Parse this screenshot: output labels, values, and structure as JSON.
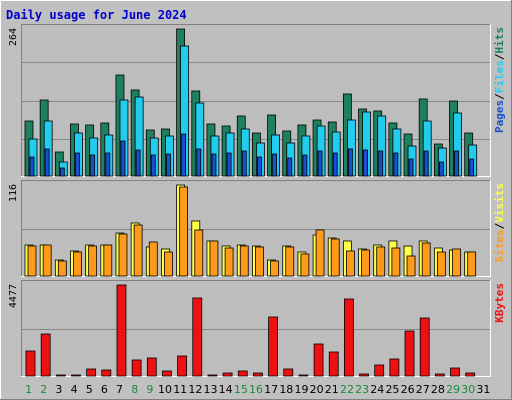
{
  "title": "Daily usage for June 2024",
  "colors": {
    "background": "#c0c0c0",
    "plot_bg": "#bdbdbd",
    "title": "#0000cc",
    "hits": "#1f8060",
    "files": "#22ccee",
    "pages": "#1a4fd0",
    "visits": "#ffff44",
    "sites": "#ff9a1a",
    "kbytes": "#ee1111",
    "weekend_label": "#1a8a3a",
    "weekday_label": "#000000"
  },
  "chart_data": [
    {
      "type": "bar",
      "panel": "hits-files-pages",
      "max_label": "264",
      "ylim": [
        0,
        264
      ],
      "legend": [
        "Pages",
        "Files",
        "Hits"
      ],
      "legend_sep": "/",
      "x": [
        1,
        2,
        3,
        4,
        5,
        6,
        7,
        8,
        9,
        10,
        11,
        12,
        13,
        14,
        15,
        16,
        17,
        18,
        19,
        20,
        21,
        22,
        23,
        24,
        25,
        26,
        27,
        28,
        29,
        30
      ],
      "series": [
        {
          "name": "Hits",
          "values": [
            98,
            137,
            43,
            93,
            91,
            96,
            182,
            155,
            83,
            84,
            264,
            152,
            93,
            89,
            107,
            78,
            109,
            80,
            91,
            100,
            97,
            147,
            121,
            116,
            96,
            75,
            139,
            57,
            135,
            77
          ]
        },
        {
          "name": "Files",
          "values": [
            66,
            98,
            26,
            78,
            68,
            73,
            136,
            141,
            69,
            71,
            234,
            131,
            71,
            78,
            84,
            60,
            73,
            59,
            71,
            90,
            79,
            101,
            115,
            108,
            84,
            53,
            98,
            50,
            114,
            55
          ]
        },
        {
          "name": "Pages",
          "values": [
            35,
            49,
            15,
            42,
            38,
            41,
            62,
            47,
            38,
            39,
            75,
            48,
            40,
            42,
            44,
            34,
            40,
            33,
            38,
            45,
            41,
            48,
            46,
            44,
            41,
            30,
            44,
            26,
            45,
            30
          ]
        }
      ]
    },
    {
      "type": "bar",
      "panel": "visits-sites",
      "max_label": "116",
      "ylim": [
        0,
        116
      ],
      "legend": [
        "Sites",
        "Visits"
      ],
      "legend_sep": "/",
      "x": [
        1,
        2,
        3,
        4,
        5,
        6,
        7,
        8,
        9,
        10,
        11,
        12,
        13,
        14,
        15,
        16,
        17,
        18,
        19,
        20,
        21,
        22,
        23,
        24,
        25,
        26,
        27,
        28,
        29,
        30
      ],
      "series": [
        {
          "name": "Visits",
          "values": [
            40,
            40,
            20,
            32,
            40,
            40,
            55,
            68,
            37,
            35,
            116,
            70,
            45,
            38,
            40,
            38,
            20,
            38,
            30,
            52,
            48,
            45,
            34,
            40,
            44,
            38,
            44,
            36,
            33,
            30
          ]
        },
        {
          "name": "Sites",
          "values": [
            38,
            39,
            19,
            30,
            38,
            39,
            53,
            65,
            43,
            30,
            114,
            58,
            44,
            36,
            38,
            37,
            19,
            37,
            28,
            58,
            47,
            32,
            33,
            37,
            36,
            26,
            42,
            30,
            34,
            30
          ]
        }
      ]
    },
    {
      "type": "bar",
      "panel": "kbytes",
      "max_label": "4477",
      "ylim": [
        0,
        4477
      ],
      "legend": [
        "KBytes"
      ],
      "x": [
        1,
        2,
        3,
        4,
        5,
        6,
        7,
        8,
        9,
        10,
        11,
        12,
        13,
        14,
        15,
        16,
        17,
        18,
        19,
        20,
        21,
        22,
        23,
        24,
        25,
        26,
        27,
        28,
        29,
        30
      ],
      "series": [
        {
          "name": "KBytes",
          "values": [
            1230,
            2080,
            60,
            45,
            360,
            300,
            4477,
            810,
            880,
            260,
            980,
            3850,
            50,
            160,
            240,
            130,
            2880,
            330,
            50,
            1560,
            1170,
            3800,
            120,
            530,
            850,
            2200,
            2850,
            120,
            380,
            140
          ]
        }
      ]
    }
  ],
  "x_labels": [
    "1",
    "2",
    "3",
    "4",
    "5",
    "6",
    "7",
    "8",
    "9",
    "10",
    "11",
    "12",
    "13",
    "14",
    "15",
    "16",
    "17",
    "18",
    "19",
    "20",
    "21",
    "22",
    "23",
    "24",
    "25",
    "26",
    "27",
    "28",
    "29",
    "30",
    "31"
  ],
  "weekend_days": [
    1,
    2,
    8,
    9,
    15,
    16,
    22,
    23,
    29,
    30
  ]
}
